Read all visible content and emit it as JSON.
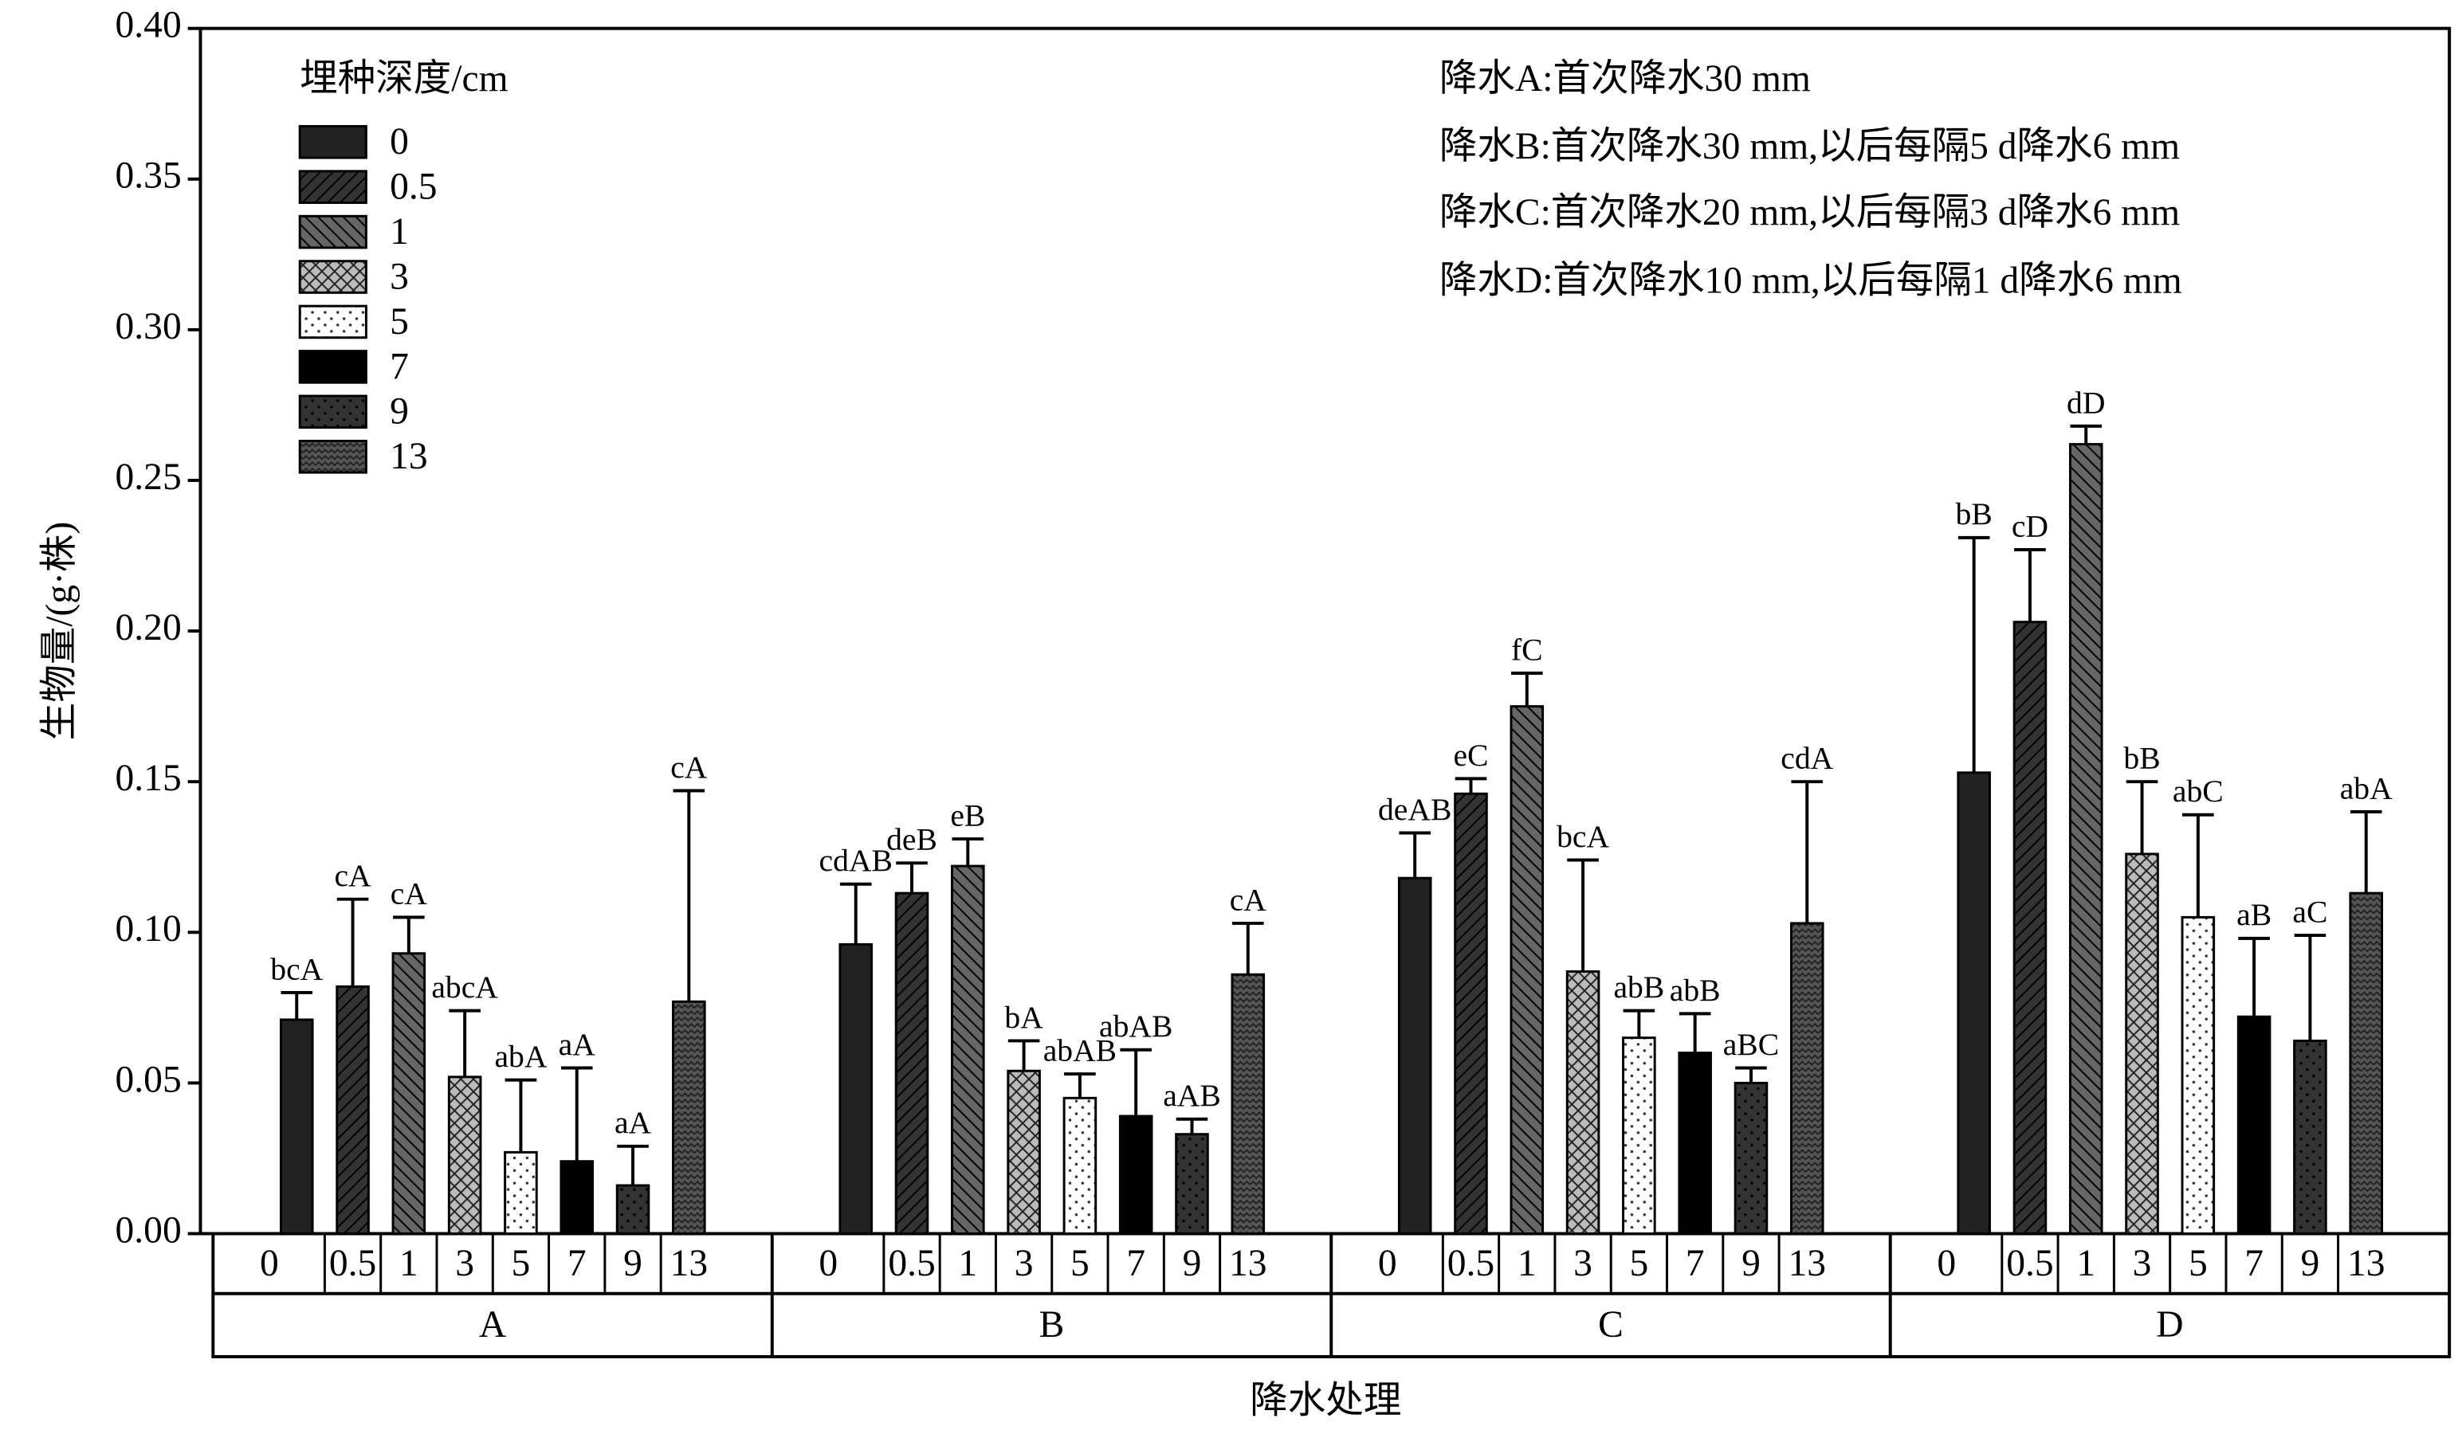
{
  "chart_data": {
    "type": "bar",
    "y_label": "生物量/(g·株)",
    "x_label": "降水处理",
    "legend_title": "埋种深度/cm",
    "annotations": [
      "降水A:首次降水30 mm",
      "降水B:首次降水30 mm,以后每隔5 d降水6 mm",
      "降水C:首次降水20 mm,以后每隔3 d降水6 mm",
      "降水D:首次降水10 mm,以后每隔1 d降水6 mm"
    ],
    "categories": [
      "A",
      "B",
      "C",
      "D"
    ],
    "ylim": [
      0,
      0.4
    ],
    "yticks": [
      {
        "value": 0,
        "label": "0.00"
      },
      {
        "value": 0.05,
        "label": "0.05"
      },
      {
        "value": 0.1,
        "label": "0.10"
      },
      {
        "value": 0.15,
        "label": "0.15"
      },
      {
        "value": 0.2,
        "label": "0.20"
      },
      {
        "value": 0.25,
        "label": "0.25"
      },
      {
        "value": 0.3,
        "label": "0.30"
      },
      {
        "value": 0.35,
        "label": "0.35"
      },
      {
        "value": 0.4,
        "label": "0.40"
      }
    ],
    "legend": "upper left",
    "series": [
      {
        "name": "0",
        "color": "#222222",
        "pattern": "solid",
        "values": [
          0.071,
          0.096,
          0.118,
          0.153
        ],
        "errors": [
          0.009,
          0.02,
          0.015,
          0.078
        ],
        "labels": [
          "bcA",
          "cdAB",
          "deAB",
          "bB"
        ]
      },
      {
        "name": "0.5",
        "color": "#333333",
        "pattern": "hatch",
        "values": [
          0.082,
          0.113,
          0.146,
          0.203
        ],
        "errors": [
          0.029,
          0.01,
          0.005,
          0.024
        ],
        "labels": [
          "cA",
          "deB",
          "eC",
          "cD"
        ]
      },
      {
        "name": "1",
        "color": "#666666",
        "pattern": "backhatch",
        "values": [
          0.093,
          0.122,
          0.175,
          0.262
        ],
        "errors": [
          0.012,
          0.009,
          0.011,
          0.006
        ],
        "labels": [
          "cA",
          "eB",
          "fC",
          "dD"
        ]
      },
      {
        "name": "3",
        "color": "#bbbbbb",
        "pattern": "cross",
        "values": [
          0.052,
          0.054,
          0.087,
          0.126
        ],
        "errors": [
          0.022,
          0.01,
          0.037,
          0.024
        ],
        "labels": [
          "abcA",
          "bA",
          "bcA",
          "bB"
        ]
      },
      {
        "name": "5",
        "color": "#ffffff",
        "pattern": "dots",
        "values": [
          0.027,
          0.045,
          0.065,
          0.105
        ],
        "errors": [
          0.024,
          0.008,
          0.009,
          0.034
        ],
        "labels": [
          "abA",
          "abAB",
          "abB",
          "abC"
        ]
      },
      {
        "name": "7",
        "color": "#000000",
        "pattern": "solid",
        "values": [
          0.024,
          0.039,
          0.06,
          0.072
        ],
        "errors": [
          0.031,
          0.022,
          0.013,
          0.026
        ],
        "labels": [
          "aA",
          "abAB",
          "abB",
          "aB"
        ]
      },
      {
        "name": "9",
        "color": "#333333",
        "pattern": "dots",
        "values": [
          0.016,
          0.033,
          0.05,
          0.064
        ],
        "errors": [
          0.013,
          0.005,
          0.005,
          0.035
        ],
        "labels": [
          "aA",
          "aAB",
          "aBC",
          "aC"
        ]
      },
      {
        "name": "13",
        "color": "#555555",
        "pattern": "wave",
        "values": [
          0.077,
          0.086,
          0.103,
          0.113
        ],
        "errors": [
          0.07,
          0.017,
          0.047,
          0.027
        ],
        "labels": [
          "cA",
          "cA",
          "cdA",
          "abA"
        ]
      }
    ]
  }
}
